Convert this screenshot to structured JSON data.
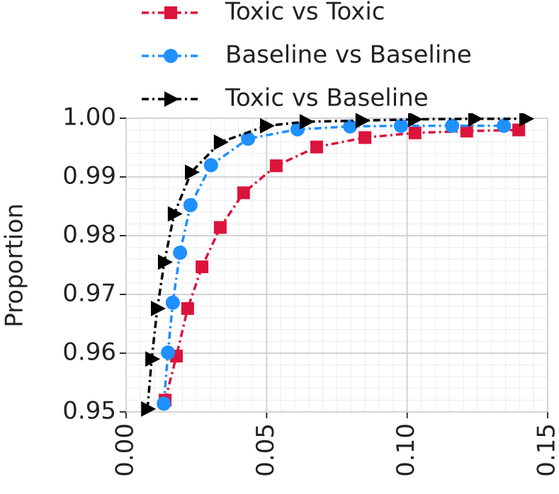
{
  "chart_data": {
    "type": "line",
    "y_label": "Proportion",
    "xlim": [
      0,
      0.15
    ],
    "xticks": [
      {
        "value": 0,
        "label": "0.00"
      },
      0.05,
      {
        "value": 0.1,
        "label": "0.10"
      },
      0.15
    ],
    "ylim": [
      0.95,
      1
    ],
    "yticks": [
      0.95,
      0.96,
      0.97,
      0.98,
      0.99,
      {
        "value": 1,
        "label": "1.00"
      }
    ],
    "grid": true,
    "legend": "top",
    "series": [
      {
        "name": "Toxic vs Toxic",
        "color": "#dc143c",
        "marker": "square",
        "x": [
          0.0139,
          0.0179,
          0.0219,
          0.027,
          0.0335,
          0.0418,
          0.0534,
          0.0678,
          0.085,
          0.1028,
          0.1212,
          0.1397
        ],
        "values": [
          0.952,
          0.9595,
          0.9676,
          0.9747,
          0.9814,
          0.9873,
          0.9919,
          0.9951,
          0.9967,
          0.9975,
          0.9978,
          0.998
        ]
      },
      {
        "name": "Baseline vs Baseline",
        "color": "#1e90ff",
        "marker": "circle",
        "x": [
          0.0134,
          0.0149,
          0.0166,
          0.0192,
          0.0229,
          0.0302,
          0.0434,
          0.061,
          0.0797,
          0.0978,
          0.116,
          0.1344
        ],
        "values": [
          0.9514,
          0.9601,
          0.9686,
          0.9771,
          0.9852,
          0.992,
          0.9965,
          0.9981,
          0.9986,
          0.9987,
          0.9987,
          0.9987
        ]
      },
      {
        "name": "Toxic vs Baseline",
        "color": "#000000",
        "marker": "triangle-right",
        "x": [
          0.0076,
          0.0091,
          0.0111,
          0.0136,
          0.0171,
          0.0232,
          0.0335,
          0.0499,
          0.064,
          0.0839,
          0.1026,
          0.124,
          0.1422
        ],
        "values": [
          0.9505,
          0.959,
          0.9676,
          0.9755,
          0.9837,
          0.9908,
          0.9959,
          0.9987,
          0.9994,
          0.9996,
          0.9998,
          0.9999,
          0.9999
        ]
      }
    ]
  }
}
